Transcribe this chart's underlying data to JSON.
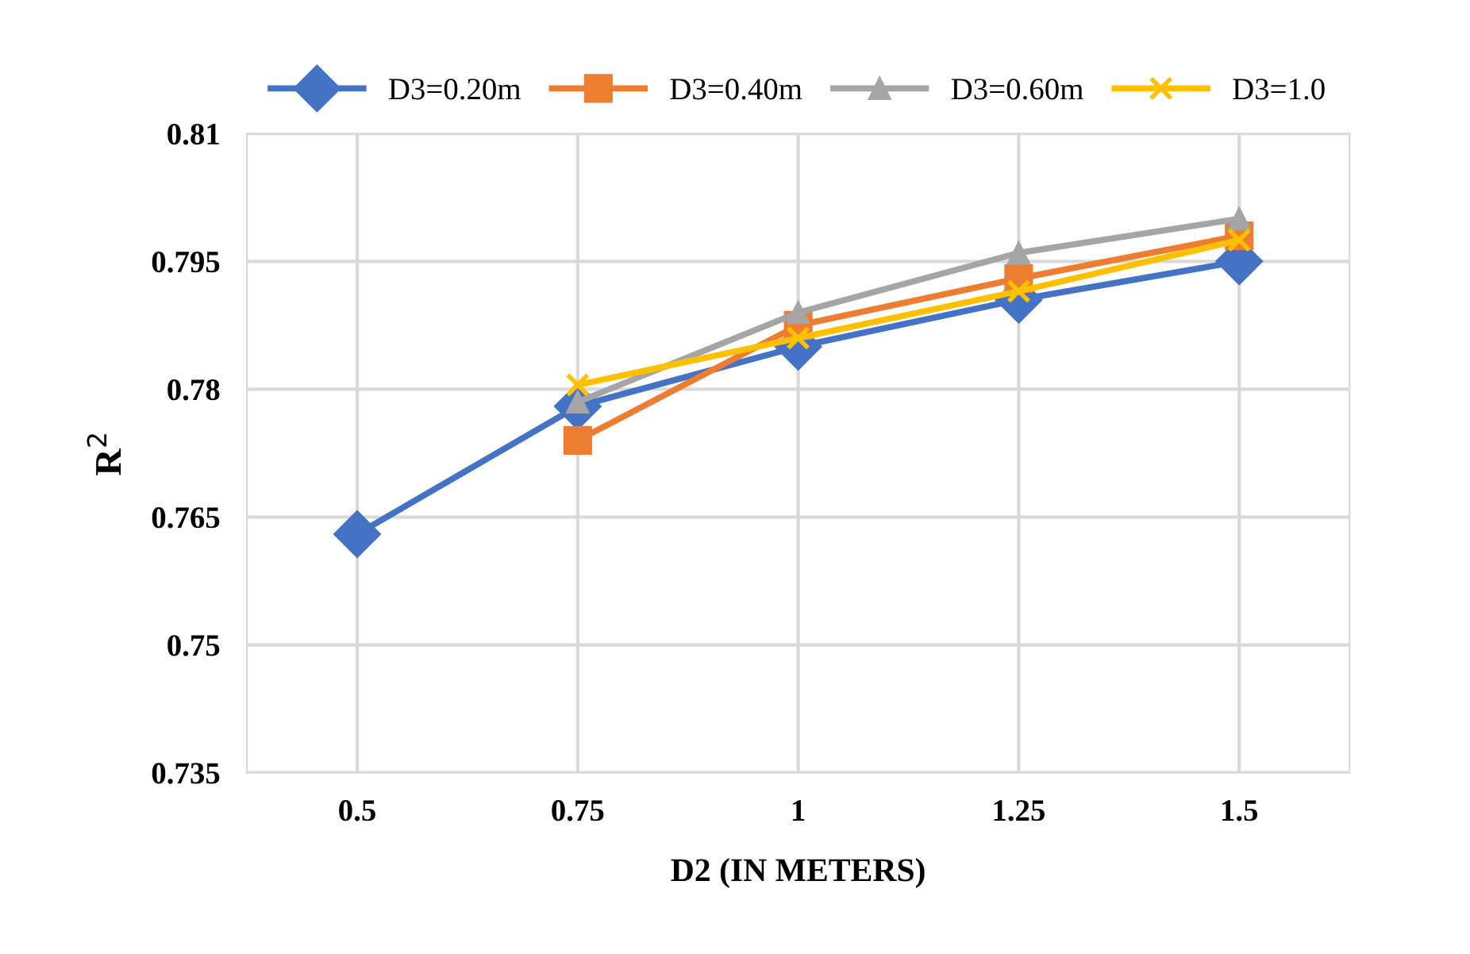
{
  "chart_data": {
    "type": "line",
    "xlabel": "D2 (IN METERS)",
    "ylabel": "R$^{2}$",
    "categories": [
      "0.5",
      "0.75",
      "1",
      "1.25",
      "1.5"
    ],
    "series": [
      {
        "name": "D3=0.20m",
        "color": "#4472c4",
        "marker": "diamond",
        "values": [
          0.763,
          0.778,
          0.785,
          0.7905,
          0.795
        ]
      },
      {
        "name": "D3=0.40m",
        "color": "#ed7d31",
        "marker": "square",
        "values": [
          null,
          0.774,
          0.7875,
          0.793,
          0.798
        ]
      },
      {
        "name": "D3=0.60m",
        "color": "#a5a5a5",
        "marker": "triangle",
        "values": [
          null,
          0.7785,
          0.789,
          0.796,
          0.8
        ]
      },
      {
        "name": "D3=1.0",
        "color": "#ffc000",
        "marker": "cross",
        "values": [
          null,
          0.7805,
          0.786,
          0.7915,
          0.7975
        ]
      }
    ],
    "ylim": [
      0.735,
      0.81
    ],
    "yticks": [
      0.735,
      0.75,
      0.765,
      0.78,
      0.795,
      0.81
    ],
    "grid": true,
    "legend": "top"
  }
}
